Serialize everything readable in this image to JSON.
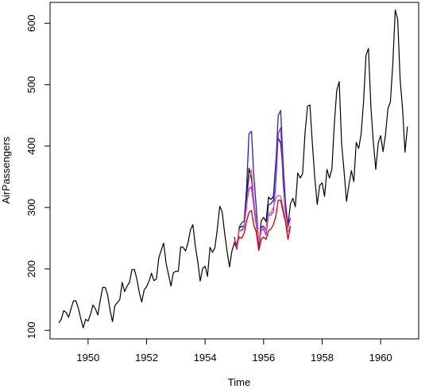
{
  "chart_data": {
    "type": "line",
    "title": "",
    "xlabel": "Time",
    "ylabel": "AirPassengers",
    "xlim": [
      1948.7,
      1961.3
    ],
    "ylim": [
      86,
      634
    ],
    "x_ticks": [
      1950,
      1952,
      1954,
      1956,
      1958,
      1960
    ],
    "x_tick_labels": [
      "1950",
      "1952",
      "1954",
      "1956",
      "1958",
      "1960"
    ],
    "y_ticks": [
      100,
      200,
      300,
      400,
      500,
      600
    ],
    "y_tick_labels": [
      "100",
      "200",
      "300",
      "400",
      "500",
      "600"
    ],
    "grid": false,
    "legend": "none",
    "series": [
      {
        "name": "",
        "color": "#000000",
        "x_start": 1949,
        "x_step": 0.0833333,
        "values": [
          112,
          118,
          132,
          129,
          121,
          135,
          148,
          148,
          136,
          119,
          104,
          118,
          115,
          126,
          141,
          135,
          125,
          149,
          170,
          170,
          158,
          133,
          114,
          140,
          145,
          150,
          178,
          163,
          172,
          178,
          199,
          199,
          184,
          162,
          146,
          166,
          171,
          180,
          193,
          181,
          183,
          218,
          230,
          242,
          209,
          191,
          172,
          194,
          196,
          196,
          236,
          235,
          229,
          243,
          264,
          272,
          237,
          211,
          180,
          201,
          204,
          188,
          235,
          227,
          234,
          264,
          302,
          293,
          259,
          229,
          203,
          229,
          242,
          233,
          267,
          269,
          270,
          315,
          364,
          347,
          312,
          274,
          237,
          278,
          284,
          277,
          317,
          313,
          318,
          374,
          413,
          405,
          355,
          306,
          271,
          306,
          315,
          301,
          356,
          348,
          355,
          422,
          465,
          467,
          404,
          347,
          305,
          336,
          340,
          318,
          362,
          348,
          363,
          435,
          491,
          505,
          404,
          359,
          310,
          337,
          360,
          342,
          406,
          396,
          420,
          472,
          548,
          559,
          463,
          407,
          362,
          405,
          417,
          391,
          419,
          461,
          472,
          535,
          622,
          606,
          508,
          461,
          390,
          432
        ]
      },
      {
        "name": "",
        "color": "#2222cc",
        "x_start": 1955,
        "x_step": 0.0833333,
        "values": [
          252,
          232,
          268,
          275,
          278,
          330,
          420,
          424,
          350,
          300,
          240,
          268,
          270,
          262,
          305,
          306,
          312,
          370,
          450,
          458,
          370,
          305,
          268,
          283
        ]
      },
      {
        "name": "",
        "color": "#8a2be2",
        "x_start": 1955,
        "x_step": 0.0833333,
        "values": [
          245,
          234,
          263,
          262,
          268,
          305,
          330,
          334,
          300,
          270,
          236,
          262,
          265,
          255,
          287,
          288,
          293,
          340,
          420,
          430,
          340,
          292,
          270,
          283
        ]
      },
      {
        "name": "",
        "color": "#e06080",
        "x_start": 1955,
        "x_step": 0.0833333,
        "values": [
          246,
          240,
          262,
          264,
          270,
          298,
          345,
          362,
          310,
          280,
          245,
          265,
          268,
          262,
          290,
          292,
          300,
          315,
          320,
          318,
          300,
          280,
          260,
          270
        ]
      },
      {
        "name": "",
        "color": "#cc0000",
        "x_start": 1955,
        "x_step": 0.0833333,
        "values": [
          244,
          240,
          252,
          250,
          258,
          278,
          292,
          295,
          270,
          260,
          230,
          248,
          252,
          248,
          262,
          265,
          272,
          286,
          312,
          312,
          292,
          276,
          248,
          270
        ]
      }
    ]
  }
}
